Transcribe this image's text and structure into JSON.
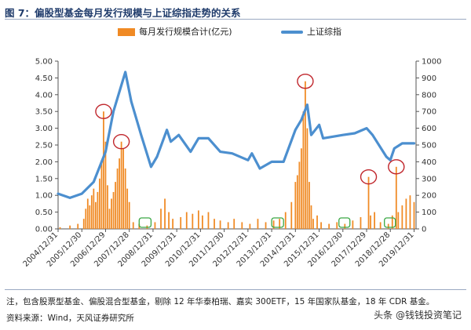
{
  "title": "图 7：偏股型基金每月发行规模与上证综指走势的关系",
  "legend": {
    "bar_label": "每月发行规模合计(亿元)",
    "line_label": "上证综指"
  },
  "note": "注，包含股票型基金、偏股混合型基金，剔除 12 年华泰柏瑞、嘉实 300ETF，15 年国家队基金，18 年 CDR 基金。",
  "source": "资料来源：Wind，天风证券研究所",
  "watermark": "头条 @钱钱投资笔记",
  "colors": {
    "bar": "#f08a24",
    "line": "#4c8fcf",
    "circle": "#c0262c",
    "box": "#3aa845",
    "text_title": "#1f3b6b"
  },
  "chart_data": {
    "type": "bar+line",
    "left_axis": {
      "label": "每月发行规模合计(亿元)",
      "range": [
        0,
        5
      ],
      "ticks": [
        "0.00",
        "0.50",
        "1.00",
        "1.50",
        "2.00",
        "2.50",
        "3.00",
        "3.50",
        "4.00",
        "4.50",
        "5.00"
      ]
    },
    "right_axis": {
      "label": "上证综指",
      "range": [
        0,
        1000
      ],
      "ticks": [
        "0",
        "100",
        "200",
        "300",
        "400",
        "500",
        "600",
        "700",
        "800",
        "900",
        "1000"
      ]
    },
    "x_range": [
      "2004-12",
      "2020-01"
    ],
    "x_ticks": [
      "2004/12/31",
      "2005/12/30",
      "2006/12/29",
      "2007/12/28",
      "2008/12/31",
      "2009/12/31",
      "2010/12/31",
      "2011/12/30",
      "2012/12/31",
      "2013/12/31",
      "2014/12/31",
      "2015/12/31",
      "2016/12/30",
      "2017/12/29",
      "2018/12/28",
      "2019/12/31"
    ],
    "line_series": {
      "name": "上证综指",
      "points": [
        [
          "2004-12",
          210
        ],
        [
          "2005-06",
          185
        ],
        [
          "2005-12",
          210
        ],
        [
          "2006-06",
          280
        ],
        [
          "2006-12",
          460
        ],
        [
          "2007-04",
          700
        ],
        [
          "2007-10",
          935
        ],
        [
          "2008-01",
          760
        ],
        [
          "2008-06",
          560
        ],
        [
          "2008-11",
          370
        ],
        [
          "2009-02",
          430
        ],
        [
          "2009-07",
          590
        ],
        [
          "2009-09",
          520
        ],
        [
          "2010-01",
          560
        ],
        [
          "2010-07",
          460
        ],
        [
          "2010-11",
          540
        ],
        [
          "2011-04",
          540
        ],
        [
          "2011-10",
          460
        ],
        [
          "2012-04",
          450
        ],
        [
          "2012-12",
          410
        ],
        [
          "2013-02",
          450
        ],
        [
          "2013-06",
          360
        ],
        [
          "2013-12",
          400
        ],
        [
          "2014-06",
          400
        ],
        [
          "2014-12",
          590
        ],
        [
          "2015-03",
          650
        ],
        [
          "2015-06",
          740
        ],
        [
          "2015-08",
          560
        ],
        [
          "2015-12",
          620
        ],
        [
          "2016-02",
          540
        ],
        [
          "2016-12",
          560
        ],
        [
          "2017-06",
          570
        ],
        [
          "2017-12",
          600
        ],
        [
          "2018-03",
          560
        ],
        [
          "2018-10",
          430
        ],
        [
          "2018-12",
          410
        ],
        [
          "2019-02",
          480
        ],
        [
          "2019-06",
          510
        ],
        [
          "2019-12",
          510
        ]
      ]
    },
    "bar_series": {
      "name": "每月发行规模合计(亿元)",
      "points": [
        [
          "2005-01",
          0.05
        ],
        [
          "2005-06",
          0.1
        ],
        [
          "2005-10",
          0.15
        ],
        [
          "2006-01",
          0.3
        ],
        [
          "2006-02",
          0.6
        ],
        [
          "2006-03",
          0.9
        ],
        [
          "2006-04",
          0.7
        ],
        [
          "2006-05",
          1.0
        ],
        [
          "2006-06",
          1.2
        ],
        [
          "2006-07",
          0.8
        ],
        [
          "2006-08",
          1.1
        ],
        [
          "2006-09",
          1.5
        ],
        [
          "2006-10",
          2.0
        ],
        [
          "2006-11",
          3.5
        ],
        [
          "2006-12",
          2.6
        ],
        [
          "2007-01",
          1.3
        ],
        [
          "2007-02",
          0.6
        ],
        [
          "2007-03",
          0.9
        ],
        [
          "2007-04",
          1.1
        ],
        [
          "2007-05",
          1.4
        ],
        [
          "2007-06",
          1.8
        ],
        [
          "2007-07",
          2.1
        ],
        [
          "2007-08",
          2.6
        ],
        [
          "2007-09",
          2.4
        ],
        [
          "2007-10",
          1.8
        ],
        [
          "2007-11",
          1.2
        ],
        [
          "2007-12",
          0.8
        ],
        [
          "2008-02",
          0.2
        ],
        [
          "2008-05",
          0.15
        ],
        [
          "2008-09",
          0.1
        ],
        [
          "2009-01",
          0.2
        ],
        [
          "2009-04",
          0.6
        ],
        [
          "2009-06",
          0.9
        ],
        [
          "2009-08",
          0.5
        ],
        [
          "2009-10",
          0.3
        ],
        [
          "2010-02",
          0.35
        ],
        [
          "2010-05",
          0.5
        ],
        [
          "2010-08",
          0.45
        ],
        [
          "2010-11",
          0.55
        ],
        [
          "2011-01",
          0.4
        ],
        [
          "2011-04",
          0.5
        ],
        [
          "2011-07",
          0.3
        ],
        [
          "2011-10",
          0.25
        ],
        [
          "2012-02",
          0.2
        ],
        [
          "2012-05",
          0.3
        ],
        [
          "2012-09",
          0.2
        ],
        [
          "2013-01",
          0.15
        ],
        [
          "2013-05",
          0.3
        ],
        [
          "2013-09",
          0.2
        ],
        [
          "2014-01",
          0.25
        ],
        [
          "2014-04",
          0.3
        ],
        [
          "2014-07",
          0.5
        ],
        [
          "2014-10",
          0.8
        ],
        [
          "2014-12",
          1.4
        ],
        [
          "2015-01",
          1.6
        ],
        [
          "2015-02",
          2.0
        ],
        [
          "2015-03",
          2.4
        ],
        [
          "2015-04",
          3.5
        ],
        [
          "2015-05",
          4.4
        ],
        [
          "2015-06",
          3.0
        ],
        [
          "2015-07",
          1.4
        ],
        [
          "2015-08",
          0.7
        ],
        [
          "2015-09",
          0.3
        ],
        [
          "2015-11",
          0.4
        ],
        [
          "2016-01",
          0.2
        ],
        [
          "2016-05",
          0.15
        ],
        [
          "2016-09",
          0.2
        ],
        [
          "2017-01",
          0.15
        ],
        [
          "2017-05",
          0.25
        ],
        [
          "2017-09",
          0.35
        ],
        [
          "2018-01",
          1.55
        ],
        [
          "2018-02",
          0.4
        ],
        [
          "2018-04",
          0.5
        ],
        [
          "2018-07",
          0.2
        ],
        [
          "2018-11",
          0.15
        ],
        [
          "2019-01",
          0.4
        ],
        [
          "2019-03",
          1.85
        ],
        [
          "2019-04",
          0.5
        ],
        [
          "2019-06",
          0.7
        ],
        [
          "2019-08",
          0.9
        ],
        [
          "2019-10",
          1.0
        ],
        [
          "2019-12",
          0.8
        ]
      ]
    },
    "annotations": {
      "red_circles": [
        "2006-11",
        "2007-08",
        "2015-05",
        "2018-01",
        "2019-03"
      ],
      "green_boxes": [
        [
          "2008-05",
          "2008-11"
        ],
        [
          "2013-12",
          "2014-06"
        ],
        [
          "2016-10",
          "2017-02"
        ],
        [
          "2018-09",
          "2018-12"
        ]
      ]
    }
  }
}
